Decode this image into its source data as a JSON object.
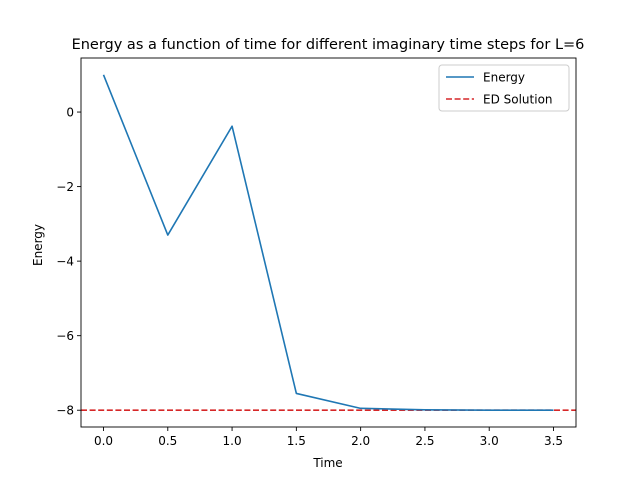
{
  "chart_data": {
    "type": "line",
    "title": "Energy as a function of time for different imaginary time steps for L=6",
    "xlabel": "Time",
    "ylabel": "Energy",
    "xlim": [
      -0.175,
      3.675
    ],
    "ylim": [
      -8.45,
      1.45
    ],
    "x_ticks": [
      0.0,
      0.5,
      1.0,
      1.5,
      2.0,
      2.5,
      3.0,
      3.5
    ],
    "x_tick_labels": [
      "0.0",
      "0.5",
      "1.0",
      "1.5",
      "2.0",
      "2.5",
      "3.0",
      "3.5"
    ],
    "y_ticks": [
      0,
      -2,
      -4,
      -6,
      -8
    ],
    "y_tick_labels": [
      "0",
      "−2",
      "−4",
      "−6",
      "−8"
    ],
    "grid": false,
    "legend_position": "top-right",
    "series": [
      {
        "name": "Energy",
        "color": "#1f77b4",
        "style": "solid",
        "x": [
          0.0,
          0.5,
          1.0,
          1.5,
          2.0,
          2.5,
          3.0,
          3.5
        ],
        "y": [
          1.0,
          -3.3,
          -0.38,
          -7.55,
          -7.95,
          -7.99,
          -8.0,
          -8.0
        ]
      }
    ],
    "reference_lines": [
      {
        "name": "ED Solution",
        "color": "#d62728",
        "style": "dashed",
        "y": -8.0
      }
    ]
  }
}
